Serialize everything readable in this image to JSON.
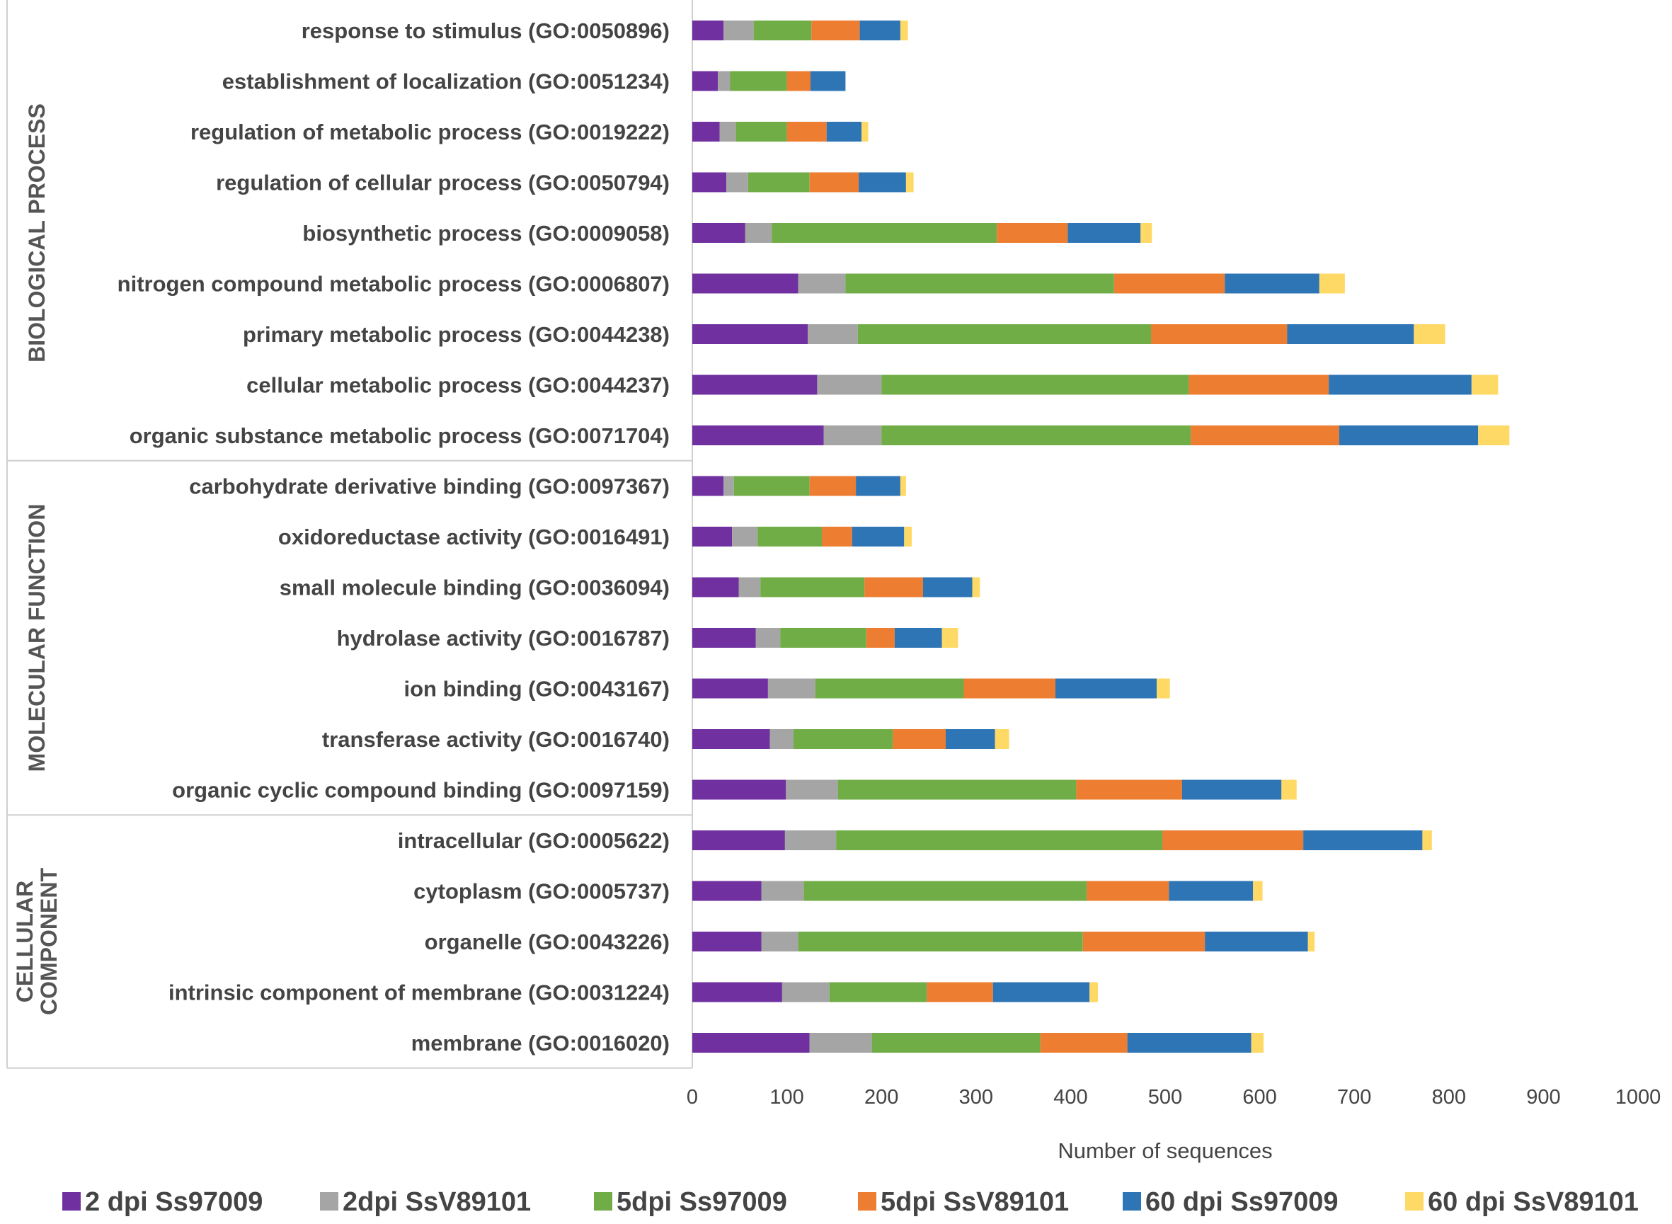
{
  "chart_data": {
    "type": "bar",
    "orientation": "horizontal",
    "stacked": true,
    "xlabel": "Number of sequences",
    "xlim": [
      0,
      1000
    ],
    "xticks": [
      0,
      100,
      200,
      300,
      400,
      500,
      600,
      700,
      800,
      900,
      1000
    ],
    "legend_position": "bottom",
    "series": [
      {
        "name": "2 dpi Ss97009",
        "color": "#7030a0"
      },
      {
        "name": "2dpi SsV89101",
        "color": "#a5a5a5"
      },
      {
        "name": "5dpi Ss97009",
        "color": "#70ad47"
      },
      {
        "name": "5dpi SsV89101",
        "color": "#ed7d31"
      },
      {
        "name": "60 dpi Ss97009",
        "color": "#2e75b6"
      },
      {
        "name": "60 dpi SsV89101",
        "color": "#ffd966"
      }
    ],
    "groups": [
      {
        "name": "BIOLOGICAL PROCESS",
        "label_lines": [
          "BIOLOGICAL PROCESS"
        ],
        "categories": [
          {
            "label": "response to stimulus (GO:0050896)",
            "values": [
              33,
              32,
              61,
              51,
              43,
              8
            ]
          },
          {
            "label": "establishment of localization (GO:0051234)",
            "values": [
              27,
              13,
              60,
              25,
              37,
              0
            ]
          },
          {
            "label": "regulation of metabolic process (GO:0019222)",
            "values": [
              29,
              17,
              54,
              42,
              37,
              7
            ]
          },
          {
            "label": "regulation of cellular process (GO:0050794)",
            "values": [
              36,
              23,
              65,
              52,
              50,
              8
            ]
          },
          {
            "label": "biosynthetic process (GO:0009058)",
            "values": [
              56,
              28,
              238,
              75,
              77,
              12
            ]
          },
          {
            "label": "nitrogen compound metabolic process (GO:0006807)",
            "values": [
              112,
              50,
              284,
              117,
              100,
              27
            ]
          },
          {
            "label": "primary metabolic process (GO:0044238)",
            "values": [
              122,
              53,
              310,
              144,
              134,
              33
            ]
          },
          {
            "label": "cellular metabolic process (GO:0044237)",
            "values": [
              132,
              68,
              325,
              148,
              151,
              28
            ]
          },
          {
            "label": "organic substance metabolic process (GO:0071704)",
            "values": [
              139,
              61,
              327,
              157,
              147,
              33
            ]
          }
        ]
      },
      {
        "name": "MOLECULAR FUNCTION",
        "label_lines": [
          "MOLECULAR FUNCTION"
        ],
        "categories": [
          {
            "label": "carbohydrate derivative binding (GO:0097367)",
            "values": [
              33,
              11,
              80,
              49,
              47,
              6
            ]
          },
          {
            "label": "oxidoreductase activity (GO:0016491)",
            "values": [
              42,
              27,
              68,
              32,
              55,
              8
            ]
          },
          {
            "label": "small molecule binding (GO:0036094)",
            "values": [
              49,
              23,
              110,
              62,
              52,
              8
            ]
          },
          {
            "label": "hydrolase activity (GO:0016787)",
            "values": [
              67,
              26,
              91,
              30,
              50,
              17
            ]
          },
          {
            "label": "ion binding (GO:0043167)",
            "values": [
              80,
              50,
              157,
              97,
              107,
              14
            ]
          },
          {
            "label": "transferase activity (GO:0016740)",
            "values": [
              82,
              25,
              105,
              56,
              52,
              15
            ]
          },
          {
            "label": "organic cyclic compound binding (GO:0097159)",
            "values": [
              99,
              55,
              252,
              112,
              105,
              16
            ]
          }
        ]
      },
      {
        "name": "CELLULAR COMPONENT",
        "label_lines": [
          "CELLULAR",
          "COMPONENT"
        ],
        "categories": [
          {
            "label": "intracellular (GO:0005622)",
            "values": [
              98,
              54,
              345,
              149,
              126,
              10
            ]
          },
          {
            "label": "cytoplasm (GO:0005737)",
            "values": [
              73,
              45,
              299,
              87,
              89,
              10
            ]
          },
          {
            "label": "organelle (GO:0043226)",
            "values": [
              73,
              39,
              301,
              129,
              109,
              7
            ]
          },
          {
            "label": "intrinsic component of membrane (GO:0031224)",
            "values": [
              95,
              50,
              103,
              70,
              102,
              9
            ]
          },
          {
            "label": "membrane (GO:0016020)",
            "values": [
              124,
              66,
              178,
              92,
              131,
              13
            ]
          }
        ]
      }
    ]
  }
}
